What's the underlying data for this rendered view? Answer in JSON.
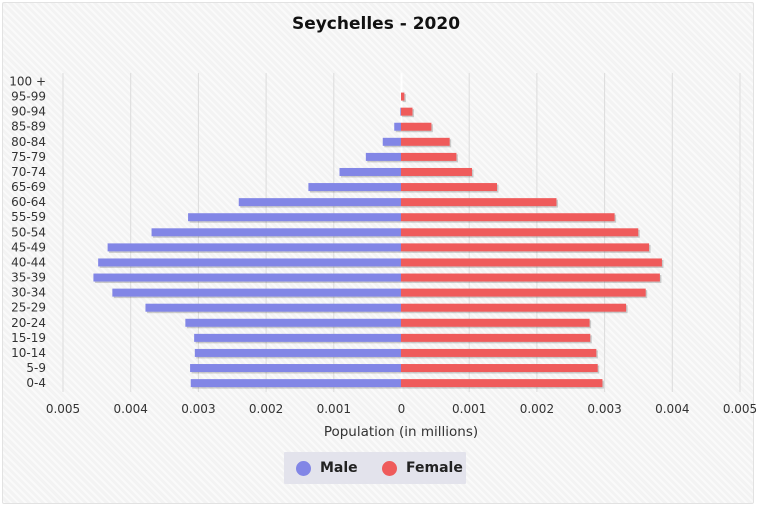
{
  "chart_data": {
    "type": "bar",
    "orientation": "horizontal",
    "title": "Seychelles - 2020",
    "xlabel": "Population (in millions)",
    "categories": [
      "100 +",
      "95-99",
      "90-94",
      "85-89",
      "80-84",
      "75-79",
      "70-74",
      "65-69",
      "60-64",
      "55-59",
      "50-54",
      "45-49",
      "40-44",
      "35-39",
      "30-34",
      "25-29",
      "20-24",
      "15-19",
      "10-14",
      "5-9",
      "0-4"
    ],
    "xlim": [
      -0.005,
      0.005
    ],
    "xticks": [
      -0.005,
      -0.004,
      -0.003,
      -0.002,
      -0.001,
      0,
      0.001,
      0.002,
      0.003,
      0.004,
      0.005
    ],
    "xtick_labels": [
      "0.005",
      "0.004",
      "0.003",
      "0.002",
      "0.001",
      "0",
      "0.001",
      "0.002",
      "0.003",
      "0.004",
      "0.005"
    ],
    "series": [
      {
        "name": "Male",
        "color": "#8286e6",
        "values": [
          0,
          0,
          1e-05,
          0.0001,
          0.00027,
          0.00052,
          0.00091,
          0.00137,
          0.0024,
          0.00315,
          0.00369,
          0.00434,
          0.00448,
          0.00455,
          0.00427,
          0.00378,
          0.00319,
          0.00306,
          0.00305,
          0.00312,
          0.00311
        ]
      },
      {
        "name": "Female",
        "color": "#ef5b5b",
        "values": [
          0,
          5e-05,
          0.00017,
          0.00045,
          0.00072,
          0.00082,
          0.00105,
          0.00142,
          0.0023,
          0.00316,
          0.00351,
          0.00367,
          0.00386,
          0.00383,
          0.00362,
          0.00333,
          0.00279,
          0.0028,
          0.00289,
          0.00291,
          0.00298
        ]
      }
    ],
    "grid": true,
    "legend_position": "bottom"
  }
}
